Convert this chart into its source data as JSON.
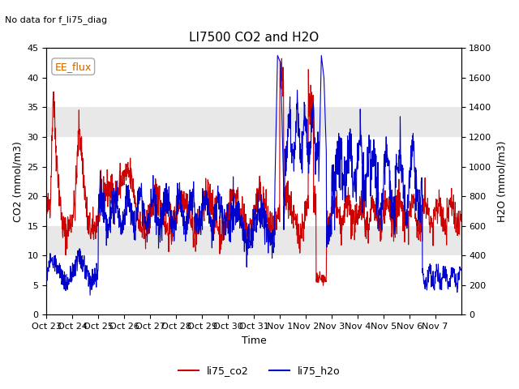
{
  "title": "LI7500 CO2 and H2O",
  "no_data_text": "No data for f_li75_diag",
  "ylabel_left": "CO2 (mmol/m3)",
  "ylabel_right": "H2O (mmol/m3)",
  "xlabel": "Time",
  "ylim_left": [
    0,
    45
  ],
  "ylim_right": [
    0,
    1800
  ],
  "legend_box_label": "EE_flux",
  "color_co2": "#cc0000",
  "color_h2o": "#0000cc",
  "background_color": "#ffffff",
  "band_color": "#e8e8e8",
  "xtick_labels": [
    "Oct 23",
    "Oct 24",
    "Oct 25",
    "Oct 26",
    "Oct 27",
    "Oct 28",
    "Oct 29",
    "Oct 30",
    "Oct 31",
    "Nov 1",
    "Nov 2",
    "Nov 3",
    "Nov 4",
    "Nov 5",
    "Nov 6",
    "Nov 7"
  ],
  "num_days": 16,
  "yticks_left": [
    0,
    5,
    10,
    15,
    20,
    25,
    30,
    35,
    40,
    45
  ],
  "yticks_right": [
    0,
    200,
    400,
    600,
    800,
    1000,
    1200,
    1400,
    1600,
    1800
  ]
}
